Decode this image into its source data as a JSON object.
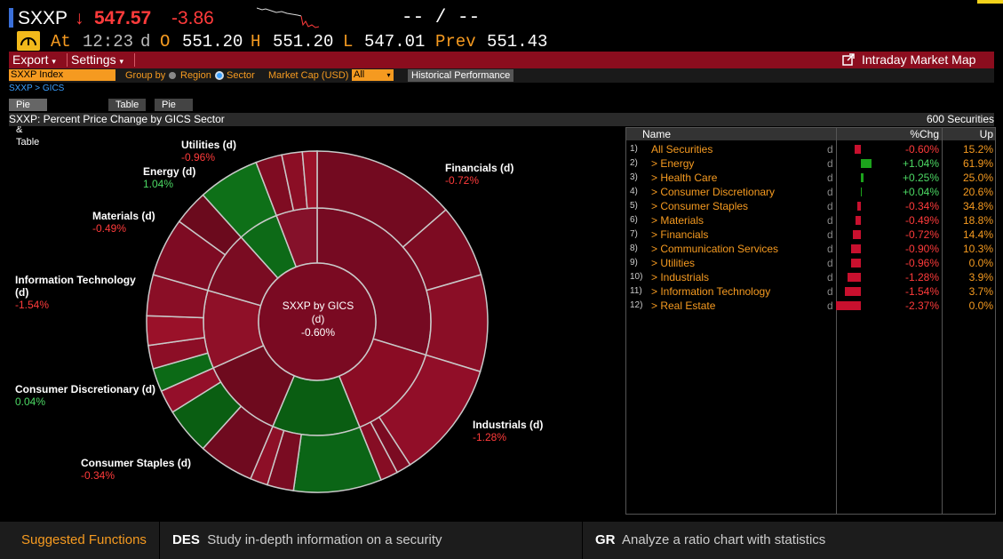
{
  "quote": {
    "ticker": "SXXP",
    "arrow": "↓",
    "price": "547.57",
    "change": "-3.86",
    "dash_label": "-- / --",
    "at_label": "At",
    "time": "12:23",
    "d": "d",
    "o_label": "O",
    "open": "551.20",
    "h_label": "H",
    "high": "551.20",
    "l_label": "L",
    "low": "547.01",
    "prev_label": "Prev",
    "prev": "551.43"
  },
  "menubar": {
    "export": "Export",
    "settings": "Settings",
    "map_link": "Intraday Market Map"
  },
  "toolbar": {
    "index_value": "SXXP Index",
    "group_by": "Group by",
    "region": "Region",
    "sector": "Sector",
    "market_cap": "Market Cap (USD)",
    "market_cap_value": "All",
    "historical": "Historical Performance"
  },
  "breadcrumb": "SXXP > GICS",
  "tabs": [
    "Pie Chart & Table",
    "Table",
    "Pie Chart"
  ],
  "header": {
    "title": "SXXP: Percent Price Change by GICS Sector",
    "count": "600 Securities"
  },
  "chart_center": {
    "title": "SXXP by GICS",
    "d": "(d)",
    "value": "-0.60%"
  },
  "chart_data": {
    "type": "pie",
    "title": "SXXP: Percent Price Change by GICS Sector",
    "slices": [
      {
        "name": "Financials (d)",
        "value": "-0.72%",
        "pct": -0.72
      },
      {
        "name": "Industrials (d)",
        "value": "-1.28%",
        "pct": -1.28
      },
      {
        "name": "Consumer Staples (d)",
        "value": "-0.34%",
        "pct": -0.34
      },
      {
        "name": "Consumer Discretionary (d)",
        "value": "0.04%",
        "pct": 0.04
      },
      {
        "name": "Information Technology (d)",
        "value": "-1.54%",
        "pct": -1.54
      },
      {
        "name": "Materials (d)",
        "value": "-0.49%",
        "pct": -0.49
      },
      {
        "name": "Energy (d)",
        "value": "1.04%",
        "pct": 1.04
      },
      {
        "name": "Utilities (d)",
        "value": "-0.96%",
        "pct": -0.96
      }
    ]
  },
  "table": {
    "columns": [
      "Name",
      "%Chg",
      "Up"
    ],
    "rows": [
      {
        "num": "1)",
        "name": "All Securities",
        "d": "d",
        "chg": "-0.60%",
        "up": "15.2%",
        "val": -0.6
      },
      {
        "num": "2)",
        "name": "> Energy",
        "d": "d",
        "chg": "+1.04%",
        "up": "61.9%",
        "val": 1.04
      },
      {
        "num": "3)",
        "name": "> Health Care",
        "d": "d",
        "chg": "+0.25%",
        "up": "25.0%",
        "val": 0.25
      },
      {
        "num": "4)",
        "name": "> Consumer Discretionary",
        "d": "d",
        "chg": "+0.04%",
        "up": "20.6%",
        "val": 0.04
      },
      {
        "num": "5)",
        "name": "> Consumer Staples",
        "d": "d",
        "chg": "-0.34%",
        "up": "34.8%",
        "val": -0.34
      },
      {
        "num": "6)",
        "name": "> Materials",
        "d": "d",
        "chg": "-0.49%",
        "up": "18.8%",
        "val": -0.49
      },
      {
        "num": "7)",
        "name": "> Financials",
        "d": "d",
        "chg": "-0.72%",
        "up": "14.4%",
        "val": -0.72
      },
      {
        "num": "8)",
        "name": "> Communication Services",
        "d": "d",
        "chg": "-0.90%",
        "up": "10.3%",
        "val": -0.9
      },
      {
        "num": "9)",
        "name": "> Utilities",
        "d": "d",
        "chg": "-0.96%",
        "up": "0.0%",
        "val": -0.96
      },
      {
        "num": "10)",
        "name": "> Industrials",
        "d": "d",
        "chg": "-1.28%",
        "up": "3.9%",
        "val": -1.28
      },
      {
        "num": "11)",
        "name": "> Information Technology",
        "d": "d",
        "chg": "-1.54%",
        "up": "3.7%",
        "val": -1.54
      },
      {
        "num": "12)",
        "name": "> Real Estate",
        "d": "d",
        "chg": "-2.37%",
        "up": "0.0%",
        "val": -2.37
      }
    ]
  },
  "footer": {
    "suggested": "Suggested Functions",
    "f1_code": "DES",
    "f1_text": "Study in-depth information on a security",
    "f2_code": "GR",
    "f2_text": "Analyze a ratio chart with statistics"
  },
  "colors": {
    "accent": "#f59a20",
    "menubar": "#8b0d1e",
    "neg": "#ff3b3b",
    "pos": "#4cd964"
  }
}
